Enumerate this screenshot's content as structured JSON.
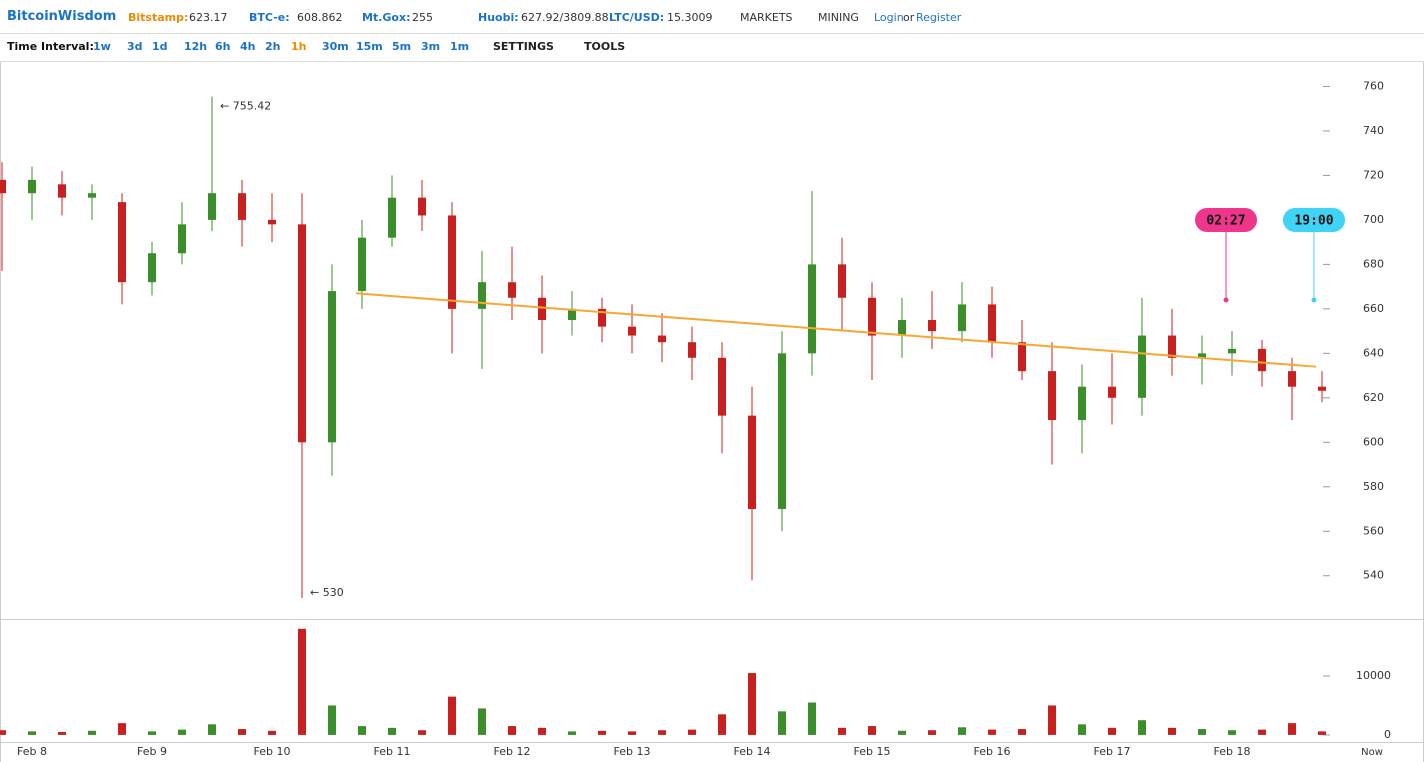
{
  "header": {
    "brand": "BitcoinWisdom",
    "tickers": [
      {
        "label": "Bitstamp:",
        "value": "623.17"
      },
      {
        "label": "BTC-e:",
        "value": "608.862"
      },
      {
        "label": "Mt.Gox:",
        "value": "255"
      },
      {
        "label": "Huobi:",
        "value": "627.92/3809.88"
      },
      {
        "label": "LTC/USD:",
        "value": "15.3009"
      }
    ],
    "menus": [
      "MARKETS",
      "MINING"
    ],
    "login": "Login",
    "or": "or",
    "register": "Register"
  },
  "toolbar": {
    "label": "Time Interval:",
    "intervals": [
      "1w",
      "3d",
      "1d",
      "12h",
      "6h",
      "4h",
      "2h",
      "1h",
      "30m",
      "15m",
      "5m",
      "3m",
      "1m"
    ],
    "selected": "1h",
    "settings": "SETTINGS",
    "tools": "TOOLS"
  },
  "chart_data": {
    "type": "candlestick",
    "categories": [
      null,
      "Feb 8",
      null,
      null,
      null,
      "Feb 9",
      null,
      null,
      null,
      "Feb 10",
      null,
      null,
      null,
      "Feb 11",
      null,
      null,
      null,
      "Feb 12",
      null,
      null,
      null,
      "Feb 13",
      null,
      null,
      null,
      "Feb 14",
      null,
      null,
      null,
      "Feb 15",
      null,
      null,
      null,
      "Feb 16",
      null,
      null,
      null,
      "Feb 17",
      null,
      null,
      null,
      "Feb 18",
      null,
      null,
      null
    ],
    "x_end_label": "Now",
    "ohlc": [
      [
        718,
        726,
        677,
        712
      ],
      [
        712,
        724,
        700,
        718
      ],
      [
        716,
        722,
        702,
        710
      ],
      [
        710,
        716,
        700,
        712
      ],
      [
        708,
        712,
        662,
        672
      ],
      [
        672,
        690,
        666,
        685
      ],
      [
        685,
        708,
        680,
        698
      ],
      [
        700,
        755.42,
        695,
        712
      ],
      [
        712,
        718,
        688,
        700
      ],
      [
        700,
        712,
        690,
        698
      ],
      [
        698,
        712,
        530,
        600
      ],
      [
        600,
        680,
        585,
        668
      ],
      [
        668,
        700,
        660,
        692
      ],
      [
        692,
        720,
        688,
        710
      ],
      [
        710,
        718,
        695,
        702
      ],
      [
        702,
        708,
        640,
        660
      ],
      [
        660,
        686,
        633,
        672
      ],
      [
        672,
        688,
        655,
        665
      ],
      [
        665,
        675,
        640,
        655
      ],
      [
        655,
        668,
        648,
        660
      ],
      [
        660,
        665,
        645,
        652
      ],
      [
        652,
        662,
        640,
        648
      ],
      [
        648,
        658,
        636,
        645
      ],
      [
        645,
        652,
        628,
        638
      ],
      [
        638,
        645,
        595,
        612
      ],
      [
        612,
        625,
        538,
        570
      ],
      [
        570,
        650,
        560,
        640
      ],
      [
        640,
        713,
        630,
        680
      ],
      [
        680,
        692,
        650,
        665
      ],
      [
        665,
        672,
        628,
        648
      ],
      [
        648,
        665,
        638,
        655
      ],
      [
        655,
        668,
        642,
        650
      ],
      [
        650,
        672,
        645,
        662
      ],
      [
        662,
        670,
        638,
        645
      ],
      [
        645,
        655,
        628,
        632
      ],
      [
        632,
        645,
        590,
        610
      ],
      [
        610,
        635,
        595,
        625
      ],
      [
        625,
        640,
        608,
        620
      ],
      [
        620,
        665,
        612,
        648
      ],
      [
        648,
        660,
        630,
        638
      ],
      [
        638,
        648,
        626,
        640
      ],
      [
        640,
        650,
        630,
        642
      ],
      [
        642,
        646,
        625,
        632
      ],
      [
        632,
        638,
        610,
        625
      ],
      [
        625,
        632,
        618,
        623.17
      ]
    ],
    "up_color": "#3a8f2a",
    "down_color": "#c8201e",
    "ylim": [
      521,
      771
    ],
    "yticks": [
      540,
      560,
      580,
      600,
      620,
      640,
      660,
      680,
      700,
      720,
      740,
      760
    ],
    "annotations": [
      {
        "text": "← 755.42",
        "index": 7,
        "value": 755.42
      },
      {
        "text": "← 530",
        "index": 10,
        "value": 530
      }
    ],
    "trend_line": {
      "index": [
        11.8,
        43.8
      ],
      "values": [
        667,
        634
      ],
      "color": "#f7a833"
    },
    "time_markers": [
      {
        "label": "02:27",
        "color": "#f0368c"
      },
      {
        "label": "19:00",
        "color": "#3fd3f5"
      }
    ],
    "volume": {
      "values": [
        800,
        600,
        500,
        700,
        2000,
        600,
        900,
        1800,
        1000,
        700,
        18000,
        5000,
        1500,
        1200,
        800,
        6500,
        4500,
        1500,
        1200,
        600,
        700,
        600,
        800,
        900,
        3500,
        10500,
        4000,
        5500,
        1200,
        1500,
        700,
        800,
        1300,
        900,
        1000,
        5000,
        1800,
        1200,
        2500,
        1200,
        1000,
        800,
        900,
        2000,
        600
      ],
      "ylim": [
        -1200,
        19500
      ],
      "yticks": [
        0,
        10000
      ]
    }
  }
}
